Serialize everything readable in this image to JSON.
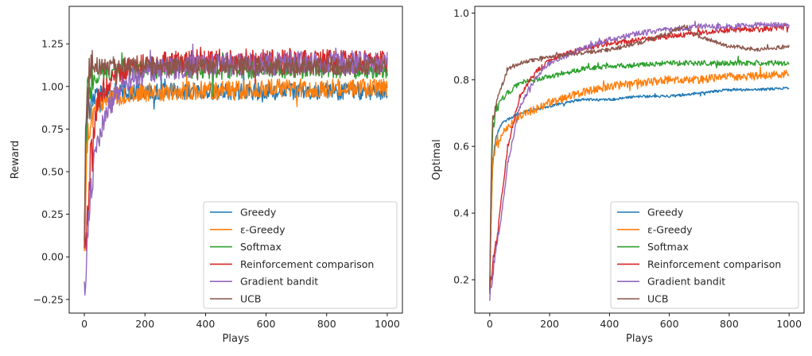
{
  "chart_data": [
    {
      "type": "line",
      "title": "",
      "xlabel": "Plays",
      "ylabel": "Reward",
      "xlim": [
        -50,
        1050
      ],
      "ylim": [
        -0.33,
        1.47
      ],
      "xticks": [
        0,
        200,
        400,
        600,
        800,
        1000
      ],
      "yticks": [
        -0.25,
        0.0,
        0.25,
        0.5,
        0.75,
        1.0,
        1.25
      ],
      "ytick_labels": [
        "−0.25",
        "0.00",
        "0.25",
        "0.50",
        "0.75",
        "1.00",
        "1.25"
      ],
      "legend_position": "lower-right",
      "grid": false,
      "series": [
        {
          "name": "Greedy",
          "color": "#1f77b4",
          "x": [
            0,
            5,
            10,
            20,
            40,
            60,
            100,
            150,
            200,
            300,
            400,
            500,
            600,
            700,
            800,
            900,
            1000
          ],
          "y": [
            0.02,
            0.6,
            0.85,
            0.92,
            0.95,
            0.96,
            0.97,
            0.97,
            0.97,
            0.97,
            0.97,
            0.97,
            0.97,
            0.97,
            0.97,
            0.97,
            0.97
          ],
          "noise": 0.05
        },
        {
          "name": "ε-Greedy",
          "color": "#ff7f0e",
          "x": [
            0,
            5,
            10,
            20,
            40,
            60,
            100,
            150,
            200,
            300,
            400,
            500,
            600,
            700,
            800,
            900,
            1000
          ],
          "y": [
            0.0,
            0.45,
            0.7,
            0.82,
            0.88,
            0.91,
            0.94,
            0.95,
            0.96,
            0.97,
            0.98,
            0.98,
            0.99,
            0.99,
            0.99,
            0.99,
            0.99
          ],
          "noise": 0.055
        },
        {
          "name": "Softmax",
          "color": "#2ca02c",
          "x": [
            0,
            5,
            10,
            20,
            40,
            60,
            100,
            150,
            200,
            300,
            400,
            500,
            600,
            700,
            800,
            900,
            1000
          ],
          "y": [
            0.05,
            0.7,
            0.95,
            1.03,
            1.07,
            1.08,
            1.09,
            1.09,
            1.1,
            1.1,
            1.1,
            1.1,
            1.1,
            1.1,
            1.1,
            1.1,
            1.1
          ],
          "noise": 0.055
        },
        {
          "name": "Reinforcement comparison",
          "color": "#d62728",
          "x": [
            0,
            5,
            10,
            20,
            40,
            60,
            100,
            150,
            200,
            300,
            400,
            500,
            600,
            700,
            800,
            900,
            1000
          ],
          "y": [
            0.0,
            0.1,
            0.25,
            0.55,
            0.85,
            0.98,
            1.06,
            1.1,
            1.12,
            1.14,
            1.15,
            1.15,
            1.15,
            1.15,
            1.15,
            1.15,
            1.15
          ],
          "noise": 0.07
        },
        {
          "name": "Gradient bandit",
          "color": "#9467bd",
          "x": [
            0,
            5,
            10,
            20,
            40,
            60,
            100,
            150,
            200,
            300,
            400,
            500,
            600,
            700,
            800,
            900,
            1000
          ],
          "y": [
            -0.2,
            -0.05,
            0.15,
            0.4,
            0.65,
            0.78,
            0.95,
            1.04,
            1.08,
            1.11,
            1.12,
            1.13,
            1.13,
            1.14,
            1.14,
            1.14,
            1.14
          ],
          "noise": 0.07
        },
        {
          "name": "UCB",
          "color": "#8c564b",
          "x": [
            0,
            5,
            10,
            20,
            40,
            60,
            100,
            150,
            200,
            300,
            400,
            500,
            600,
            700,
            800,
            900,
            1000
          ],
          "y": [
            0.05,
            0.85,
            1.05,
            1.1,
            1.12,
            1.12,
            1.12,
            1.12,
            1.12,
            1.12,
            1.12,
            1.12,
            1.12,
            1.12,
            1.12,
            1.12,
            1.12
          ],
          "noise": 0.055
        }
      ]
    },
    {
      "type": "line",
      "title": "",
      "xlabel": "Plays",
      "ylabel": "Optimal",
      "xlim": [
        -50,
        1050
      ],
      "ylim": [
        0.1,
        1.02
      ],
      "xticks": [
        0,
        200,
        400,
        600,
        800,
        1000
      ],
      "yticks": [
        0.2,
        0.4,
        0.6,
        0.8,
        1.0
      ],
      "ytick_labels": [
        "0.2",
        "0.4",
        "0.6",
        "0.8",
        "1.0"
      ],
      "legend_position": "lower-right",
      "grid": false,
      "series": [
        {
          "name": "Greedy",
          "color": "#1f77b4",
          "x": [
            0,
            5,
            10,
            20,
            40,
            60,
            100,
            150,
            200,
            250,
            300,
            400,
            500,
            600,
            700,
            800,
            900,
            1000
          ],
          "y": [
            0.18,
            0.4,
            0.55,
            0.63,
            0.67,
            0.68,
            0.7,
            0.71,
            0.72,
            0.73,
            0.74,
            0.74,
            0.75,
            0.75,
            0.76,
            0.77,
            0.77,
            0.775
          ],
          "noise": 0.004
        },
        {
          "name": "ε-Greedy",
          "color": "#ff7f0e",
          "x": [
            0,
            5,
            10,
            20,
            40,
            60,
            100,
            150,
            200,
            300,
            400,
            500,
            600,
            700,
            800,
            900,
            1000
          ],
          "y": [
            0.18,
            0.4,
            0.55,
            0.6,
            0.64,
            0.66,
            0.69,
            0.71,
            0.73,
            0.76,
            0.78,
            0.79,
            0.8,
            0.8,
            0.81,
            0.81,
            0.82
          ],
          "noise": 0.012
        },
        {
          "name": "Softmax",
          "color": "#2ca02c",
          "x": [
            0,
            5,
            10,
            20,
            40,
            60,
            100,
            150,
            200,
            300,
            400,
            500,
            600,
            700,
            800,
            900,
            1000
          ],
          "y": [
            0.18,
            0.5,
            0.65,
            0.71,
            0.74,
            0.76,
            0.79,
            0.8,
            0.81,
            0.83,
            0.84,
            0.845,
            0.85,
            0.85,
            0.85,
            0.85,
            0.85
          ],
          "noise": 0.008
        },
        {
          "name": "Reinforcement comparison",
          "color": "#d62728",
          "x": [
            0,
            5,
            10,
            20,
            40,
            60,
            100,
            150,
            200,
            300,
            400,
            500,
            600,
            700,
            800,
            900,
            1000
          ],
          "y": [
            0.17,
            0.2,
            0.25,
            0.3,
            0.45,
            0.6,
            0.75,
            0.82,
            0.86,
            0.89,
            0.91,
            0.92,
            0.93,
            0.94,
            0.95,
            0.95,
            0.96
          ],
          "noise": 0.008
        },
        {
          "name": "Gradient bandit",
          "color": "#9467bd",
          "x": [
            0,
            5,
            10,
            20,
            40,
            60,
            100,
            150,
            200,
            300,
            400,
            500,
            600,
            700,
            800,
            900,
            1000
          ],
          "y": [
            0.15,
            0.18,
            0.22,
            0.28,
            0.4,
            0.55,
            0.72,
            0.8,
            0.85,
            0.89,
            0.92,
            0.94,
            0.95,
            0.96,
            0.96,
            0.965,
            0.965
          ],
          "noise": 0.008
        },
        {
          "name": "UCB",
          "color": "#8c564b",
          "x": [
            0,
            5,
            10,
            20,
            40,
            60,
            100,
            150,
            200,
            300,
            400,
            500,
            600,
            650,
            700,
            800,
            900,
            1000
          ],
          "y": [
            0.18,
            0.55,
            0.68,
            0.72,
            0.78,
            0.83,
            0.85,
            0.86,
            0.87,
            0.88,
            0.89,
            0.91,
            0.94,
            0.96,
            0.93,
            0.9,
            0.89,
            0.9
          ],
          "noise": 0.006
        }
      ]
    }
  ]
}
